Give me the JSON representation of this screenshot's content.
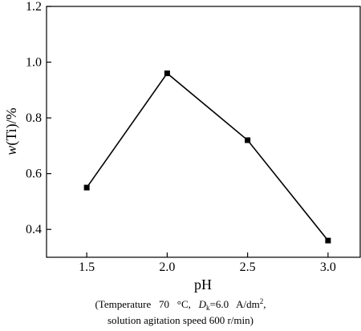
{
  "chart_data": {
    "type": "line",
    "x": [
      1.5,
      2.0,
      2.5,
      3.0
    ],
    "values": [
      0.55,
      0.96,
      0.72,
      0.36
    ],
    "xlim": [
      1.25,
      3.2
    ],
    "ylim": [
      0.3,
      1.2
    ],
    "xticks": [
      "1.5",
      "2.0",
      "2.5",
      "3.0"
    ],
    "yticks": [
      "0.4",
      "0.6",
      "0.8",
      "1.0",
      "1.2"
    ],
    "xlabel": "pH",
    "ylabel_var": "w",
    "ylabel_rest": "(Ti)/%",
    "grid": false,
    "marker": "square",
    "caption": {
      "line1_start": "(Temperature   70   °C,   ",
      "dk_var": "D",
      "dk_sub": "k",
      "dk_rest": "=6.0   A/dm",
      "dk_sup": "2",
      "line1_end": ",",
      "line2": "solution agitation speed 600 r/min)"
    }
  }
}
